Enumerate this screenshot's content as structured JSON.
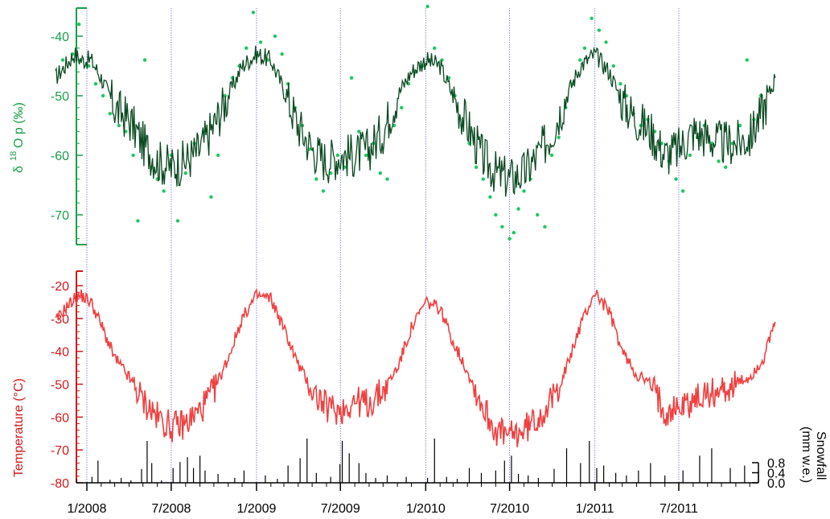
{
  "chart_data": [
    {
      "type": "line+scatter",
      "ylabel_base": "δ",
      "ylabel_sup": "18",
      "ylabel_rest": "O p (‰)",
      "yticks": [
        "-40",
        "-50",
        "-60",
        "-70"
      ],
      "ylim": [
        -76,
        -34
      ],
      "colors": {
        "axis": "#1a9e48",
        "line": "#0b4a22",
        "points": "#1ec85f"
      },
      "series": [
        {
          "x": [
            "2007-10-25",
            "2007-11-15",
            "2007-12-05",
            "2007-12-20",
            "2008-01-10",
            "2008-02-01",
            "2008-03-01",
            "2008-04-01",
            "2008-05-01",
            "2008-06-01",
            "2008-07-01",
            "2008-08-01",
            "2008-09-01",
            "2008-10-01",
            "2008-11-01",
            "2008-12-01",
            "2009-01-01",
            "2009-02-01",
            "2009-03-01",
            "2009-04-01",
            "2009-05-01",
            "2009-06-01",
            "2009-07-01",
            "2009-08-01",
            "2009-09-01",
            "2009-10-01",
            "2009-11-01",
            "2009-12-01",
            "2010-01-01",
            "2010-02-01",
            "2010-03-01",
            "2010-04-01",
            "2010-05-01",
            "2010-06-01",
            "2010-07-01",
            "2010-08-01",
            "2010-09-01",
            "2010-10-01",
            "2010-11-01",
            "2010-12-01",
            "2011-01-01",
            "2011-02-01",
            "2011-03-01",
            "2011-04-01",
            "2011-05-01",
            "2011-06-01",
            "2011-07-01",
            "2011-08-01",
            "2011-09-01",
            "2011-10-01",
            "2011-11-01",
            "2011-12-01",
            "2012-01-01",
            "2012-01-25"
          ],
          "y": [
            -47,
            -45,
            -43,
            -44,
            -44,
            -47,
            -52,
            -54,
            -58,
            -61,
            -62,
            -61,
            -59,
            -55,
            -50,
            -45,
            -43,
            -44,
            -49,
            -55,
            -59,
            -61,
            -60,
            -60,
            -59,
            -56,
            -50,
            -46,
            -44,
            -45,
            -50,
            -55,
            -60,
            -63,
            -64,
            -63,
            -60,
            -56,
            -50,
            -45,
            -43,
            -46,
            -51,
            -54,
            -56,
            -60,
            -59,
            -56,
            -57,
            -58,
            -58,
            -57,
            -52,
            -47
          ]
        }
      ],
      "scatter": {
        "x": [
          "2007-11-10",
          "2007-12-01",
          "2007-12-15",
          "2008-01-05",
          "2008-01-20",
          "2008-02-05",
          "2008-02-20",
          "2008-03-10",
          "2008-03-25",
          "2008-04-10",
          "2008-04-20",
          "2008-05-05",
          "2008-05-20",
          "2008-06-01",
          "2008-06-15",
          "2008-07-01",
          "2008-07-15",
          "2008-08-01",
          "2008-08-20",
          "2008-09-10",
          "2008-09-25",
          "2008-10-10",
          "2008-10-25",
          "2008-11-10",
          "2008-11-25",
          "2008-12-10",
          "2008-12-25",
          "2009-01-10",
          "2009-01-25",
          "2009-02-10",
          "2009-02-25",
          "2009-03-10",
          "2009-03-25",
          "2009-04-10",
          "2009-04-25",
          "2009-05-10",
          "2009-05-25",
          "2009-06-10",
          "2009-06-25",
          "2009-07-10",
          "2009-07-25",
          "2009-08-10",
          "2009-08-25",
          "2009-09-10",
          "2009-09-25",
          "2009-10-10",
          "2009-10-25",
          "2009-11-10",
          "2009-11-25",
          "2009-12-10",
          "2009-12-25",
          "2010-01-05",
          "2010-01-20",
          "2010-02-05",
          "2010-02-20",
          "2010-03-05",
          "2010-03-20",
          "2010-04-05",
          "2010-04-20",
          "2010-05-05",
          "2010-05-20",
          "2010-06-01",
          "2010-06-15",
          "2010-07-01",
          "2010-07-10",
          "2010-07-20",
          "2010-08-01",
          "2010-08-15",
          "2010-08-30",
          "2010-09-15",
          "2010-09-30",
          "2010-10-15",
          "2010-10-30",
          "2010-11-15",
          "2010-11-30",
          "2010-12-10",
          "2010-12-25",
          "2011-01-10",
          "2011-01-25",
          "2011-02-10",
          "2011-02-25",
          "2011-03-10",
          "2011-03-25",
          "2011-04-10",
          "2011-04-25",
          "2011-05-10",
          "2011-05-25",
          "2011-06-10",
          "2011-06-25",
          "2011-07-10",
          "2011-07-25",
          "2011-08-10",
          "2011-08-25",
          "2011-09-10",
          "2011-09-25",
          "2011-10-10",
          "2011-10-25",
          "2011-11-10",
          "2011-11-25",
          "2011-12-10",
          "2011-12-25"
        ],
        "y": [
          -44,
          -43,
          -38,
          -45,
          -48,
          -50,
          -53,
          -55,
          -56,
          -60,
          -71,
          -44,
          -62,
          -64,
          -66,
          -60,
          -71,
          -63,
          -58,
          -56,
          -67,
          -60,
          -50,
          -47,
          -45,
          -42,
          -36,
          -41,
          -44,
          -40,
          -43,
          -48,
          -52,
          -55,
          -59,
          -64,
          -66,
          -63,
          -60,
          -62,
          -47,
          -56,
          -60,
          -58,
          -63,
          -64,
          -55,
          -52,
          -48,
          -46,
          -45,
          -35,
          -42,
          -44,
          -47,
          -50,
          -55,
          -58,
          -62,
          -64,
          -67,
          -70,
          -72,
          -74,
          -73,
          -69,
          -66,
          -64,
          -70,
          -72,
          -60,
          -57,
          -52,
          -48,
          -44,
          -42,
          -37,
          -39,
          -41,
          -45,
          -48,
          -50,
          -53,
          -55,
          -54,
          -56,
          -58,
          -61,
          -64,
          -66,
          -60,
          -57,
          -55,
          -58,
          -61,
          -62,
          -58,
          -55,
          -44,
          -54,
          -50
        ]
      },
      "xticks": [
        "1/2008",
        "7/2008",
        "1/2009",
        "7/2009",
        "1/2010",
        "7/2010",
        "1/2011",
        "7/2011"
      ]
    },
    {
      "type": "line",
      "ylabel": "Temperature (°C)",
      "yticks": [
        "-20",
        "-30",
        "-40",
        "-50",
        "-60",
        "-70",
        "-80"
      ],
      "ylim": [
        -80,
        -17
      ],
      "colors": {
        "axis": "#d11a1a",
        "line": "#f04040"
      },
      "series": [
        {
          "x": [
            "2007-10-25",
            "2007-11-15",
            "2007-12-05",
            "2007-12-20",
            "2008-01-10",
            "2008-02-01",
            "2008-03-01",
            "2008-04-01",
            "2008-05-01",
            "2008-06-01",
            "2008-07-01",
            "2008-08-01",
            "2008-09-01",
            "2008-10-01",
            "2008-11-01",
            "2008-12-01",
            "2009-01-01",
            "2009-02-01",
            "2009-03-01",
            "2009-04-01",
            "2009-05-01",
            "2009-06-01",
            "2009-07-01",
            "2009-08-01",
            "2009-09-01",
            "2009-10-01",
            "2009-11-01",
            "2009-12-01",
            "2010-01-01",
            "2010-02-01",
            "2010-03-01",
            "2010-04-01",
            "2010-05-01",
            "2010-06-01",
            "2010-07-01",
            "2010-08-01",
            "2010-09-01",
            "2010-10-01",
            "2010-11-01",
            "2010-12-01",
            "2011-01-01",
            "2011-02-01",
            "2011-03-01",
            "2011-04-01",
            "2011-05-01",
            "2011-06-01",
            "2011-07-01",
            "2011-08-01",
            "2011-09-01",
            "2011-10-01",
            "2011-11-01",
            "2011-12-01",
            "2012-01-01",
            "2012-01-25"
          ],
          "y": [
            -31,
            -27,
            -24,
            -23,
            -25,
            -32,
            -42,
            -48,
            -55,
            -60,
            -63,
            -62,
            -58,
            -52,
            -42,
            -30,
            -23,
            -24,
            -33,
            -44,
            -52,
            -57,
            -58,
            -55,
            -56,
            -52,
            -45,
            -33,
            -25,
            -27,
            -37,
            -46,
            -56,
            -64,
            -66,
            -64,
            -60,
            -55,
            -45,
            -32,
            -22,
            -28,
            -40,
            -47,
            -50,
            -58,
            -57,
            -55,
            -53,
            -52,
            -50,
            -48,
            -42,
            -31
          ]
        }
      ]
    },
    {
      "type": "bar",
      "ylabel": "Snowfall\n(mm w.e.)",
      "yticks": [
        "0.8",
        "0.4",
        "0.0"
      ],
      "ylim": [
        0,
        0.9
      ],
      "colors": {
        "bars": "#000000"
      },
      "x": [
        "2007-12-10",
        "2008-01-12",
        "2008-01-25",
        "2008-02-20",
        "2008-03-15",
        "2008-04-05",
        "2008-04-28",
        "2008-05-10",
        "2008-05-20",
        "2008-06-10",
        "2008-07-05",
        "2008-07-20",
        "2008-08-05",
        "2008-08-18",
        "2008-09-01",
        "2008-09-12",
        "2008-10-10",
        "2008-11-15",
        "2008-12-05",
        "2009-01-20",
        "2009-02-15",
        "2009-03-10",
        "2009-04-05",
        "2009-04-20",
        "2009-05-10",
        "2009-06-10",
        "2009-06-30",
        "2009-07-05",
        "2009-07-20",
        "2009-08-10",
        "2009-08-25",
        "2009-09-15",
        "2009-10-10",
        "2009-11-20",
        "2010-01-05",
        "2010-01-20",
        "2010-02-15",
        "2010-03-10",
        "2010-04-05",
        "2010-05-01",
        "2010-06-01",
        "2010-06-20",
        "2010-07-05",
        "2010-07-20",
        "2010-08-10",
        "2010-09-01",
        "2010-10-05",
        "2010-11-01",
        "2010-12-01",
        "2010-12-20",
        "2011-01-05",
        "2011-01-20",
        "2011-02-15",
        "2011-03-10",
        "2011-04-05",
        "2011-05-01",
        "2011-06-01",
        "2011-07-10",
        "2011-08-15",
        "2011-09-10",
        "2011-10-20",
        "2011-11-20",
        "2011-12-20"
      ],
      "values": [
        0.08,
        0.12,
        0.45,
        0.06,
        0.1,
        0.05,
        0.28,
        0.85,
        0.4,
        0.05,
        0.3,
        0.42,
        0.52,
        0.3,
        0.55,
        0.25,
        0.18,
        0.1,
        0.25,
        0.15,
        0.08,
        0.35,
        0.5,
        0.9,
        0.2,
        0.12,
        0.38,
        0.85,
        0.6,
        0.4,
        0.2,
        0.1,
        0.15,
        0.12,
        0.1,
        0.9,
        0.12,
        0.08,
        0.3,
        0.2,
        0.25,
        0.45,
        0.55,
        0.18,
        0.15,
        0.1,
        0.28,
        0.7,
        0.4,
        0.85,
        0.3,
        0.35,
        0.2,
        0.15,
        0.25,
        0.4,
        0.15,
        0.25,
        0.55,
        0.7,
        0.3,
        0.35,
        0.25
      ]
    }
  ]
}
